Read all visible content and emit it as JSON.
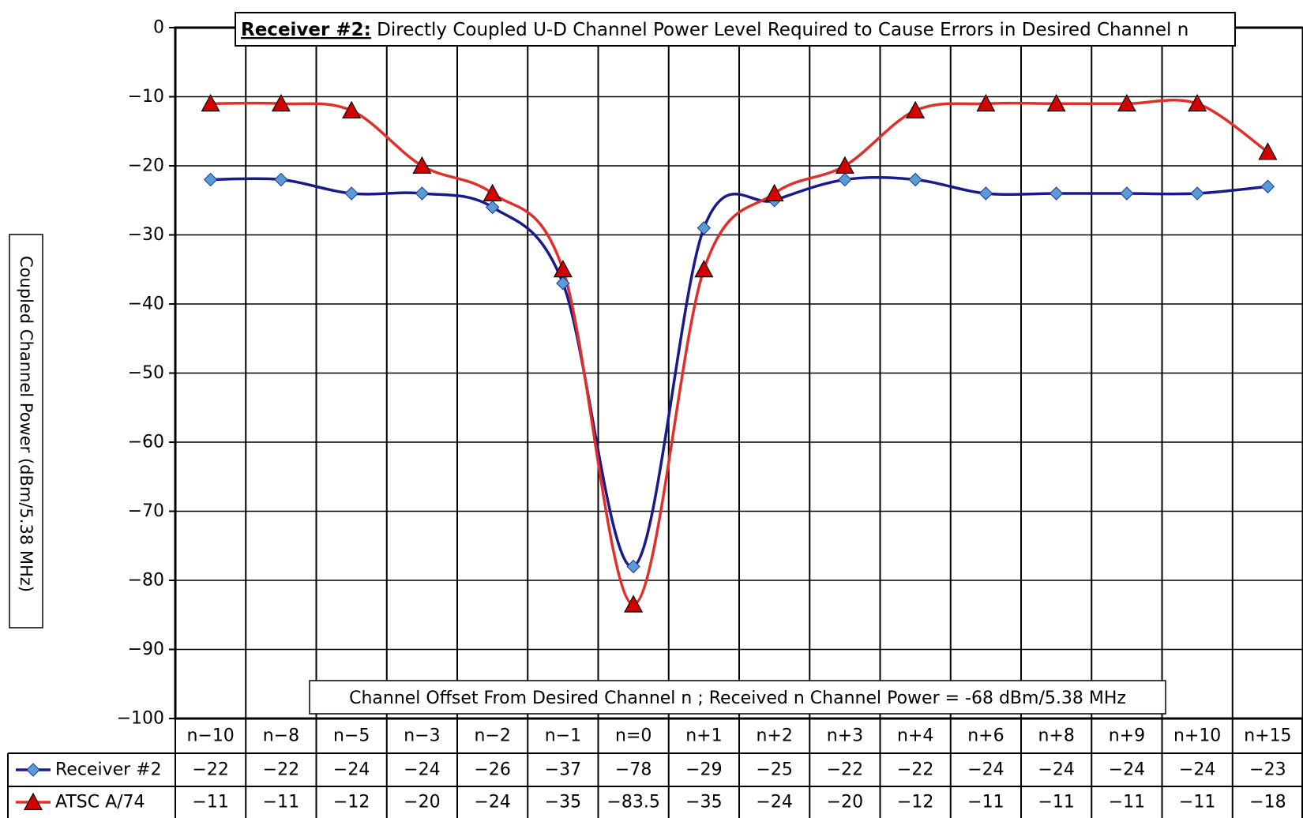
{
  "chart_data": {
    "type": "line",
    "title_bold": "Receiver #2:",
    "title_rest": " Directly Coupled U-D Channel Power Level Required to Cause Errors in Desired Channel n",
    "ylabel": "Coupled Channel Power (dBm/5.38 MHz)",
    "xlabel": "Channel Offset From Desired Channel n ; Received n Channel Power = -68 dBm/5.38 MHz",
    "ylim": [
      -100,
      0
    ],
    "yticks": [
      "0",
      "-10",
      "-20",
      "-30",
      "-40",
      "-50",
      "-60",
      "-70",
      "-80",
      "-90",
      "-100"
    ],
    "grid": true,
    "legend": "data-table-below",
    "categories": [
      "n-10",
      "n-8",
      "n-5",
      "n-3",
      "n-2",
      "n-1",
      "n=0",
      "n+1",
      "n+2",
      "n+3",
      "n+4",
      "n+6",
      "n+8",
      "n+9",
      "n+10",
      "n+15"
    ],
    "series": [
      {
        "name": "Receiver #2",
        "color": "#1a1a8c",
        "marker_color": "#5b9bd5",
        "marker": "diamond",
        "values": [
          -22,
          -22,
          -24,
          -24,
          -26,
          -37,
          -78,
          -29,
          -25,
          -22,
          -22,
          -24,
          -24,
          -24,
          -24,
          -23
        ],
        "labels": [
          "-22",
          "-22",
          "-24",
          "-24",
          "-26",
          "-37",
          "-78",
          "-29",
          "-25",
          "-22",
          "-22",
          "-24",
          "-24",
          "-24",
          "-24",
          "-23"
        ]
      },
      {
        "name": "ATSC A/74",
        "color": "#e0302c",
        "marker_color": "#d40000",
        "marker": "triangle",
        "values": [
          -11,
          -11,
          -12,
          -20,
          -24,
          -35,
          -83.5,
          -35,
          -24,
          -20,
          -12,
          -11,
          -11,
          -11,
          -11,
          -18
        ],
        "labels": [
          "-11",
          "-11",
          "-12",
          "-20",
          "-24",
          "-35",
          "-83.5",
          "-35",
          "-24",
          "-20",
          "-12",
          "-11",
          "-11",
          "-11",
          "-11",
          "-18"
        ]
      }
    ]
  }
}
